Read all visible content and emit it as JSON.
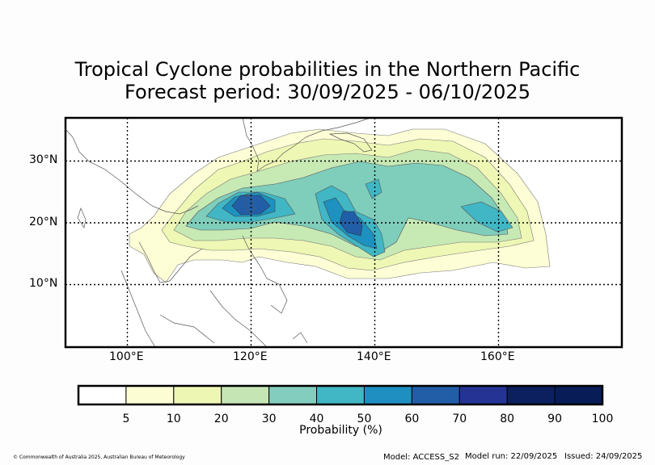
{
  "title_line1": "Tropical Cyclone probabilities in the Northern Pacific",
  "title_line2": "Forecast period: 30/09/2025 - 06/10/2025",
  "map": {
    "lon_range": [
      90,
      180
    ],
    "lat_range": [
      0,
      37
    ],
    "lat_gridlines": [
      10,
      20,
      30
    ],
    "lon_gridlines": [
      100,
      120,
      140,
      160
    ],
    "lat_labels": [
      "30°N",
      "20°N",
      "10°N"
    ],
    "lon_labels": [
      "100°E",
      "120°E",
      "140°E",
      "160°E"
    ],
    "grid": true
  },
  "colorbar": {
    "label": "Probability (%)",
    "ticks": [
      "5",
      "10",
      "20",
      "30",
      "40",
      "50",
      "60",
      "70",
      "80",
      "90",
      "100"
    ],
    "colors": [
      "#ffffff",
      "#fdfdd3",
      "#eef6b4",
      "#c5e6b4",
      "#82cdbd",
      "#41b6c4",
      "#1e8fc0",
      "#225ea8",
      "#253494",
      "#0c1f5e",
      "#081d58"
    ]
  },
  "footer": {
    "copyright": "© Commonwealth of Australia 2025, Australian Bureau of Meteorology",
    "model": "Model: ACCESS_S2",
    "model_run": "Model run: 22/09/2025",
    "issued": "Issued: 24/09/2025"
  }
}
